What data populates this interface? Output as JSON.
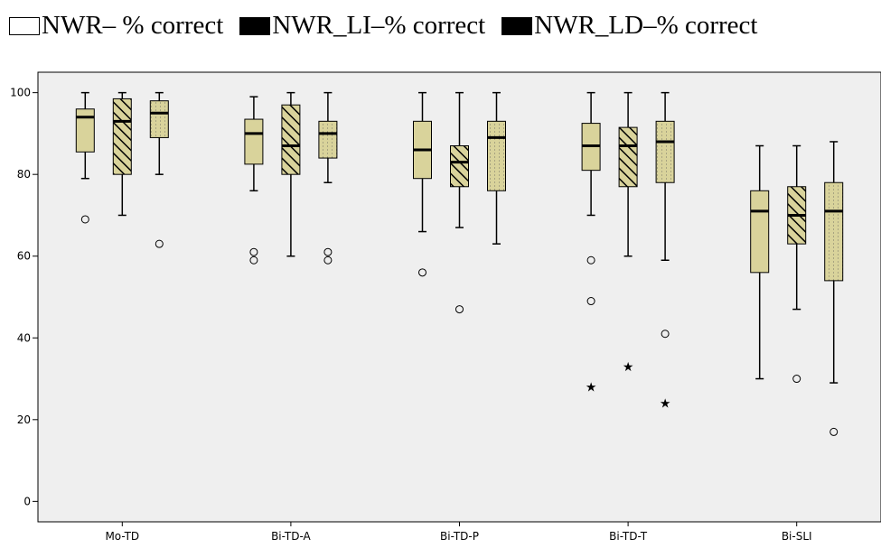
{
  "legend": {
    "items": [
      {
        "label": "NWR– % correct",
        "fill": "#ffffff"
      },
      {
        "label": "NWR_LI–% correct",
        "fill": "#000000"
      },
      {
        "label": "NWR_LD–% correct",
        "fill": "#000000"
      }
    ]
  },
  "colors": {
    "box_fill": "#d9d39b",
    "plot_background": "#efefef",
    "border": "#000000"
  },
  "chart_data": {
    "type": "box",
    "categories": [
      "Mo-TD",
      "Bi-TD-A",
      "Bi-TD-P",
      "Bi-TD-T",
      "Bi-SLI"
    ],
    "ylim": [
      -5,
      105
    ],
    "yticks": [
      0,
      20,
      40,
      60,
      80,
      100
    ],
    "ytick_labels": [
      "0",
      "20",
      "40",
      "60",
      "80",
      "100"
    ],
    "series": [
      {
        "name": "NWR– % correct",
        "pattern": "plain",
        "boxes": [
          {
            "whisker_low": 79,
            "q1": 85.5,
            "median": 94,
            "q3": 96,
            "whisker_high": 100,
            "outliers": [
              69
            ],
            "extremes": []
          },
          {
            "whisker_low": 76,
            "q1": 82.5,
            "median": 90,
            "q3": 93.5,
            "whisker_high": 99,
            "outliers": [
              61,
              59
            ],
            "extremes": []
          },
          {
            "whisker_low": 66,
            "q1": 79,
            "median": 86,
            "q3": 93,
            "whisker_high": 100,
            "outliers": [
              56
            ],
            "extremes": []
          },
          {
            "whisker_low": 70,
            "q1": 81,
            "median": 87,
            "q3": 92.5,
            "whisker_high": 100,
            "outliers": [
              59,
              49
            ],
            "extremes": [
              28
            ]
          },
          {
            "whisker_low": 30,
            "q1": 56,
            "median": 71,
            "q3": 76,
            "whisker_high": 87,
            "outliers": [],
            "extremes": []
          }
        ]
      },
      {
        "name": "NWR_LI–% correct",
        "pattern": "hatch",
        "boxes": [
          {
            "whisker_low": 70,
            "q1": 80,
            "median": 93,
            "q3": 98.5,
            "whisker_high": 100,
            "outliers": [],
            "extremes": []
          },
          {
            "whisker_low": 60,
            "q1": 80,
            "median": 87,
            "q3": 97,
            "whisker_high": 100,
            "outliers": [],
            "extremes": []
          },
          {
            "whisker_low": 67,
            "q1": 77,
            "median": 83,
            "q3": 87,
            "whisker_high": 100,
            "outliers": [
              47
            ],
            "extremes": []
          },
          {
            "whisker_low": 60,
            "q1": 77,
            "median": 87,
            "q3": 91.5,
            "whisker_high": 100,
            "outliers": [],
            "extremes": [
              33
            ]
          },
          {
            "whisker_low": 47,
            "q1": 63,
            "median": 70,
            "q3": 77,
            "whisker_high": 87,
            "outliers": [
              30
            ],
            "extremes": []
          }
        ]
      },
      {
        "name": "NWR_LD–% correct",
        "pattern": "dotted",
        "boxes": [
          {
            "whisker_low": 80,
            "q1": 89,
            "median": 95,
            "q3": 98,
            "whisker_high": 100,
            "outliers": [
              63
            ],
            "extremes": []
          },
          {
            "whisker_low": 78,
            "q1": 84,
            "median": 90,
            "q3": 93,
            "whisker_high": 100,
            "outliers": [
              61,
              59
            ],
            "extremes": []
          },
          {
            "whisker_low": 63,
            "q1": 76,
            "median": 89,
            "q3": 93,
            "whisker_high": 100,
            "outliers": [],
            "extremes": []
          },
          {
            "whisker_low": 59,
            "q1": 78,
            "median": 88,
            "q3": 93,
            "whisker_high": 100,
            "outliers": [
              41
            ],
            "extremes": [
              24
            ]
          },
          {
            "whisker_low": 29,
            "q1": 54,
            "median": 71,
            "q3": 78,
            "whisker_high": 88,
            "outliers": [
              17
            ],
            "extremes": []
          }
        ]
      }
    ]
  }
}
